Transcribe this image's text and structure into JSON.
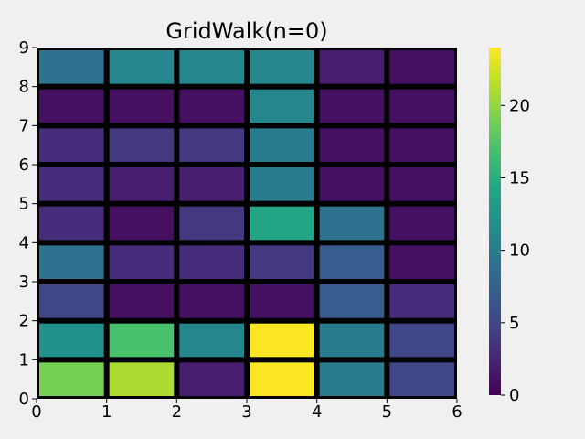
{
  "title": "GridWalk(n=0)",
  "chart_data": {
    "type": "heatmap",
    "title": "GridWalk(n=0)",
    "xlim": [
      0,
      6
    ],
    "ylim": [
      0,
      9
    ],
    "x_ticks": [
      "0",
      "1",
      "2",
      "3",
      "4",
      "5",
      "6"
    ],
    "y_ticks": [
      "0",
      "1",
      "2",
      "3",
      "4",
      "5",
      "6",
      "7",
      "8",
      "9"
    ],
    "colormap": "viridis",
    "color_range": [
      0,
      24
    ],
    "colorbar_ticks": [
      "0",
      "5",
      "10",
      "15",
      "20"
    ],
    "grid_line_color": "#000000",
    "rows_bottom_to_top": [
      [
        19,
        21,
        2,
        24,
        10,
        5
      ],
      [
        12,
        17,
        11,
        24,
        10,
        5
      ],
      [
        5,
        1,
        1,
        1,
        7,
        3
      ],
      [
        9,
        3,
        3,
        4,
        7,
        1
      ],
      [
        3,
        1,
        4,
        14,
        9,
        1
      ],
      [
        3,
        2,
        2,
        10,
        1,
        1
      ],
      [
        3,
        4,
        4,
        10,
        1,
        1
      ],
      [
        1,
        1,
        1,
        11,
        1,
        1
      ],
      [
        9,
        11,
        11,
        11,
        2,
        1
      ]
    ]
  }
}
